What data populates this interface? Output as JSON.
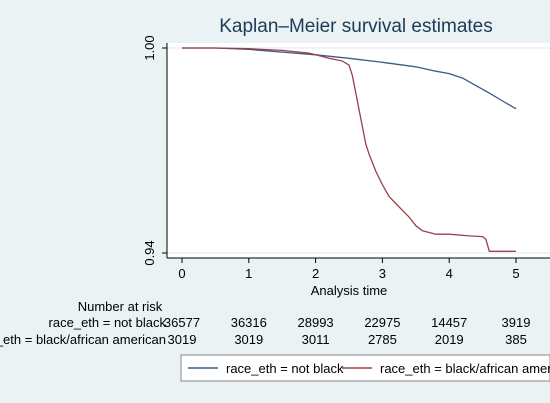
{
  "chart_data": {
    "type": "line",
    "title": "Kaplan–Meier survival estimates",
    "xlabel": "Analysis time",
    "ylabel": "",
    "xlim": [
      0,
      5
    ],
    "ylim": [
      0.94,
      1.0
    ],
    "xticks": [
      0,
      1,
      2,
      3,
      4,
      5
    ],
    "yticks": [
      0.94,
      1.0
    ],
    "ytick_labels": [
      "0.94",
      "1.00"
    ],
    "grid": "horizontal",
    "legend_position": "bottom",
    "series": [
      {
        "name": "race_eth = not black",
        "color": "#3d5a80",
        "x": [
          0,
          0.5,
          1.0,
          1.5,
          2.0,
          2.5,
          3.0,
          3.5,
          3.8,
          4.0,
          4.2,
          4.4,
          4.6,
          4.8,
          5.0
        ],
        "y": [
          1.0,
          1.0,
          0.9996,
          0.9988,
          0.998,
          0.997,
          0.9958,
          0.9945,
          0.9932,
          0.9925,
          0.9912,
          0.989,
          0.9868,
          0.9845,
          0.9822
        ]
      },
      {
        "name": "race_eth = black/african american",
        "color": "#96424a",
        "x": [
          0,
          0.5,
          1.0,
          1.5,
          1.9,
          2.0,
          2.2,
          2.4,
          2.5,
          2.55,
          2.6,
          2.65,
          2.7,
          2.75,
          2.8,
          2.85,
          2.9,
          3.0,
          3.1,
          3.2,
          3.3,
          3.4,
          3.5,
          3.6,
          3.8,
          4.0,
          4.3,
          4.5,
          4.55,
          4.6,
          4.8,
          5.0
        ],
        "y": [
          1.0,
          1.0,
          0.9998,
          0.9993,
          0.9985,
          0.998,
          0.997,
          0.9962,
          0.995,
          0.992,
          0.987,
          0.982,
          0.977,
          0.972,
          0.969,
          0.9665,
          0.964,
          0.96,
          0.9565,
          0.9545,
          0.9525,
          0.9505,
          0.948,
          0.9465,
          0.9455,
          0.9455,
          0.945,
          0.9448,
          0.944,
          0.9405,
          0.9405,
          0.9405
        ]
      }
    ],
    "risk_table": {
      "header": "Number at risk",
      "rows": [
        {
          "label": "race_eth = not black",
          "values": [
            "36577",
            "36316",
            "28993",
            "22975",
            "14457",
            "3919"
          ]
        },
        {
          "label": "race_eth = black/african american",
          "values": [
            "3019",
            "3019",
            "3011",
            "2785",
            "2019",
            "385"
          ]
        }
      ]
    }
  }
}
